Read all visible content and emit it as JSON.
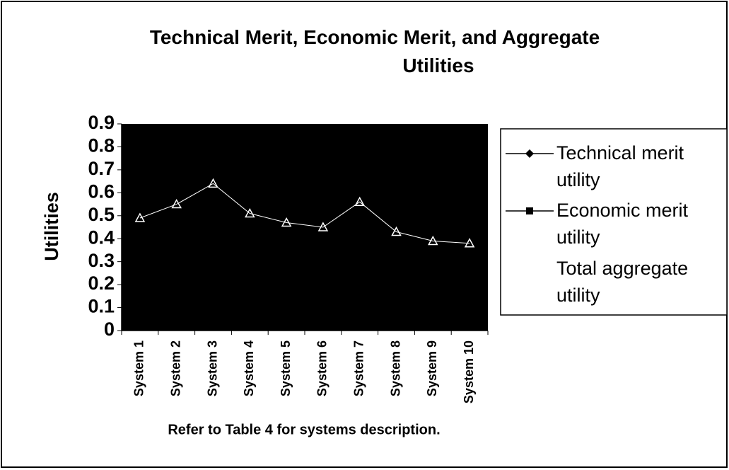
{
  "chart_data": {
    "type": "line",
    "title": "Technical Merit, Economic Merit, and Aggregate Utilities",
    "y_label": "Utilities",
    "caption": "Refer to Table 4 for systems description.",
    "categories": [
      "System 1",
      "System 2",
      "System 3",
      "System 4",
      "System 5",
      "System 6",
      "System 7",
      "System 8",
      "System 9",
      "System 10"
    ],
    "series": [
      {
        "name": "Technical merit utility",
        "color": "#000000",
        "marker": "diamond",
        "values": [
          null,
          null,
          null,
          null,
          null,
          null,
          null,
          null,
          null,
          null
        ]
      },
      {
        "name": "Economic merit utility",
        "color": "#000000",
        "marker": "square",
        "values": [
          null,
          null,
          null,
          null,
          null,
          null,
          null,
          null,
          null,
          null
        ]
      },
      {
        "name": "Total aggregate utility",
        "color": "#ffffff",
        "marker": "triangle",
        "values": [
          0.49,
          0.55,
          0.64,
          0.51,
          0.47,
          0.45,
          0.56,
          0.43,
          0.39,
          0.38
        ]
      }
    ],
    "ylim": [
      0,
      0.9
    ],
    "yticks": [
      0,
      0.1,
      0.2,
      0.3,
      0.4,
      0.5,
      0.6,
      0.7,
      0.8,
      0.9
    ],
    "plot_background": "#000000",
    "legend": "right"
  }
}
